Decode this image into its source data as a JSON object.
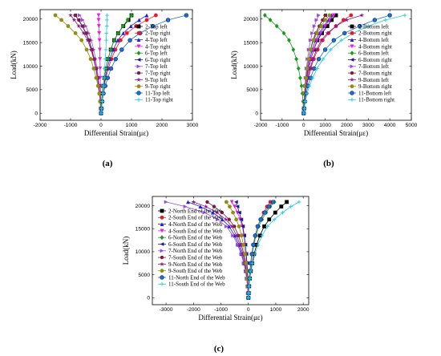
{
  "figure": {
    "captions": [
      "(a)",
      "(b)",
      "(c)"
    ]
  },
  "chart_data": [
    {
      "type": "line",
      "xlabel": "Differential Strain(με)",
      "ylabel": "Load(kN)",
      "xlim": [
        -2000,
        3000
      ],
      "ylim": [
        -1500,
        22000
      ],
      "xticks": [
        "-2000",
        "-1000",
        "0",
        "1000",
        "2000",
        "3000"
      ],
      "yticks": [
        "0",
        "5000",
        "10000",
        "15000",
        "20000"
      ],
      "legend_position": "right",
      "y": [
        0,
        1000,
        2500,
        4200,
        5800,
        7500,
        9500,
        11500,
        13500,
        15500,
        17000,
        18500,
        19800,
        20800
      ],
      "series": [
        {
          "name": "2-Top left",
          "color": "#000000",
          "marker": "square",
          "x": [
            0,
            10,
            20,
            40,
            70,
            110,
            160,
            230,
            320,
            430,
            560,
            730,
            900,
            1000
          ]
        },
        {
          "name": "2-Top right",
          "color": "#e8182a",
          "marker": "circle",
          "x": [
            0,
            15,
            30,
            60,
            100,
            160,
            240,
            340,
            470,
            640,
            850,
            1150,
            1500,
            1800
          ]
        },
        {
          "name": "4-Top left",
          "color": "#1d1ddb",
          "marker": "triangle",
          "x": [
            0,
            10,
            25,
            50,
            85,
            140,
            200,
            290,
            400,
            550,
            730,
            980,
            1250,
            1500
          ]
        },
        {
          "name": "4-Top right",
          "color": "#e21ee2",
          "marker": "triangle-down",
          "x": [
            0,
            -5,
            -10,
            -15,
            -20,
            -25,
            -30,
            -35,
            -40,
            -50,
            -60,
            -70,
            -80,
            -80
          ]
        },
        {
          "name": "6-Top left",
          "color": "#1a9a1a",
          "marker": "diamond",
          "x": [
            0,
            10,
            20,
            40,
            70,
            110,
            160,
            230,
            320,
            430,
            560,
            720,
            870,
            1000
          ]
        },
        {
          "name": "6-Top right",
          "color": "#1c1c8e",
          "marker": "triangle-left",
          "x": [
            0,
            -10,
            -25,
            -50,
            -80,
            -120,
            -170,
            -230,
            -310,
            -400,
            -500,
            -620,
            -740,
            -850
          ]
        },
        {
          "name": "7-Top left",
          "color": "#9a4cd9",
          "marker": "triangle-right",
          "x": [
            0,
            -10,
            -20,
            -35,
            -60,
            -90,
            -130,
            -180,
            -240,
            -320,
            -400,
            -500,
            -600,
            -700
          ]
        },
        {
          "name": "7-Top right",
          "color": "#7a1e3a",
          "marker": "hexagon",
          "x": [
            0,
            -10,
            -20,
            -40,
            -70,
            -110,
            -160,
            -220,
            -300,
            -390,
            -490,
            -610,
            -730,
            -850
          ]
        },
        {
          "name": "9-Top left",
          "color": "#8a1a8a",
          "marker": "star",
          "x": [
            0,
            -10,
            -25,
            -45,
            -75,
            -115,
            -170,
            -240,
            -330,
            -440,
            -570,
            -730,
            -880,
            -1000
          ]
        },
        {
          "name": "9-Top right",
          "color": "#8f8f14",
          "marker": "circle",
          "x": [
            0,
            -15,
            -30,
            -60,
            -100,
            -160,
            -240,
            -340,
            -470,
            -640,
            -840,
            -1080,
            -1300,
            -1500
          ]
        },
        {
          "name": "11-Top left",
          "color": "#1f6fd1",
          "marker": "circle-open",
          "x": [
            0,
            20,
            40,
            80,
            140,
            220,
            330,
            480,
            680,
            950,
            1280,
            1700,
            2200,
            2800
          ]
        },
        {
          "name": "11-Top right",
          "color": "#28c9d9",
          "marker": "cross",
          "x": [
            0,
            20,
            40,
            60,
            80,
            100,
            120,
            140,
            160,
            170,
            180,
            190,
            195,
            200
          ]
        }
      ]
    },
    {
      "type": "line",
      "xlabel": "Differential Strain(με)",
      "ylabel": "Load(kN)",
      "xlim": [
        -2000,
        5000
      ],
      "ylim": [
        -1500,
        22000
      ],
      "xticks": [
        "-2000",
        "-1000",
        "0",
        "1000",
        "2000",
        "3000",
        "4000",
        "5000"
      ],
      "yticks": [
        "0",
        "5000",
        "10000",
        "15000",
        "20000"
      ],
      "legend_position": "right",
      "y": [
        0,
        1000,
        2500,
        4200,
        5800,
        7500,
        9500,
        11500,
        13500,
        15500,
        17000,
        18500,
        19800,
        20800
      ],
      "series": [
        {
          "name": "2-Bottom left",
          "color": "#000000",
          "marker": "square",
          "x": [
            0,
            15,
            30,
            60,
            100,
            160,
            240,
            340,
            470,
            640,
            850,
            1100,
            1300,
            1500
          ]
        },
        {
          "name": "2-Bottom right",
          "color": "#e8182a",
          "marker": "circle",
          "x": [
            0,
            20,
            40,
            80,
            140,
            220,
            330,
            470,
            650,
            880,
            1160,
            1500,
            1850,
            2200
          ]
        },
        {
          "name": "4-Bottom left",
          "color": "#1d1ddb",
          "marker": "triangle",
          "x": [
            0,
            10,
            25,
            50,
            85,
            140,
            200,
            290,
            400,
            550,
            730,
            930,
            1150,
            1300
          ]
        },
        {
          "name": "4-Bottom right",
          "color": "#e21ee2",
          "marker": "triangle-down",
          "x": [
            0,
            15,
            30,
            60,
            100,
            160,
            240,
            340,
            460,
            620,
            800,
            1000,
            1200,
            1400
          ]
        },
        {
          "name": "6-Bottom left",
          "color": "#1a9a1a",
          "marker": "diamond",
          "x": [
            0,
            -15,
            -30,
            -60,
            -100,
            -160,
            -240,
            -340,
            -480,
            -680,
            -920,
            -1250,
            -1550,
            -1800
          ]
        },
        {
          "name": "6-Bottom right",
          "color": "#1c1c8e",
          "marker": "triangle-left",
          "x": [
            0,
            10,
            20,
            40,
            70,
            110,
            160,
            230,
            320,
            430,
            560,
            720,
            870,
            1000
          ]
        },
        {
          "name": "7-Bottom left",
          "color": "#9a4cd9",
          "marker": "triangle-right",
          "x": [
            0,
            10,
            20,
            40,
            60,
            90,
            130,
            180,
            240,
            320,
            400,
            500,
            600,
            700
          ]
        },
        {
          "name": "7-Bottom right",
          "color": "#7a1e3a",
          "marker": "hexagon",
          "x": [
            0,
            10,
            25,
            45,
            75,
            115,
            170,
            240,
            330,
            440,
            570,
            730,
            880,
            1000
          ]
        },
        {
          "name": "9-Bottom left",
          "color": "#8a1a8a",
          "marker": "star",
          "x": [
            0,
            20,
            40,
            80,
            130,
            200,
            300,
            430,
            600,
            820,
            1100,
            1500,
            2000,
            2700
          ]
        },
        {
          "name": "9-Bottom right",
          "color": "#8f8f14",
          "marker": "circle",
          "x": [
            0,
            10,
            20,
            40,
            70,
            110,
            160,
            230,
            330,
            460,
            620,
            820,
            1000,
            1200
          ]
        },
        {
          "name": "11-Bottom left",
          "color": "#1f6fd1",
          "marker": "circle-open",
          "x": [
            0,
            30,
            60,
            120,
            200,
            320,
            480,
            700,
            1000,
            1400,
            1900,
            2600,
            3300,
            4000
          ]
        },
        {
          "name": "11-Bottom right",
          "color": "#28c9d9",
          "marker": "cross",
          "x": [
            0,
            40,
            80,
            160,
            270,
            420,
            620,
            900,
            1250,
            1750,
            2300,
            3000,
            3800,
            4700
          ]
        }
      ]
    },
    {
      "type": "line",
      "xlabel": "Differential Strain(με)",
      "ylabel": "Load(kN)",
      "xlim": [
        -3500,
        2200
      ],
      "ylim": [
        -1500,
        22000
      ],
      "xticks": [
        "-3000",
        "-2000",
        "-1000",
        "0",
        "1000",
        "2000"
      ],
      "yticks": [
        "0",
        "5000",
        "10000",
        "15000",
        "20000"
      ],
      "legend_position": "left",
      "y": [
        0,
        1000,
        2500,
        4200,
        5800,
        7500,
        9500,
        11500,
        13500,
        15500,
        17000,
        18500,
        19800,
        20800
      ],
      "series": [
        {
          "name": "2-North End of the Web",
          "color": "#000000",
          "marker": "square",
          "x": [
            0,
            15,
            30,
            55,
            90,
            140,
            210,
            300,
            420,
            580,
            760,
            980,
            1200,
            1400
          ]
        },
        {
          "name": "2-South End of the Web",
          "color": "#e8182a",
          "marker": "circle",
          "x": [
            0,
            10,
            20,
            35,
            55,
            85,
            125,
            180,
            250,
            340,
            440,
            560,
            680,
            800
          ]
        },
        {
          "name": "4-North End of the Web",
          "color": "#1d1ddb",
          "marker": "triangle",
          "x": [
            0,
            -15,
            -30,
            -60,
            -100,
            -160,
            -240,
            -350,
            -500,
            -700,
            -950,
            -1300,
            -1750,
            -2200
          ]
        },
        {
          "name": "4-South End of the Web",
          "color": "#e21ee2",
          "marker": "triangle-down",
          "x": [
            0,
            -5,
            -10,
            -20,
            -35,
            -55,
            -80,
            -115,
            -160,
            -220,
            -300,
            -400,
            -500,
            -600
          ]
        },
        {
          "name": "6-North End of the Web",
          "color": "#1a9a1a",
          "marker": "diamond",
          "x": [
            0,
            10,
            20,
            35,
            60,
            95,
            140,
            200,
            280,
            380,
            500,
            650,
            800,
            950
          ]
        },
        {
          "name": "6-South End of the Web",
          "color": "#1c1c8e",
          "marker": "triangle-left",
          "x": [
            0,
            -5,
            -10,
            -20,
            -30,
            -50,
            -75,
            -110,
            -150,
            -200,
            -260,
            -330,
            -400,
            -450
          ]
        },
        {
          "name": "7-North End of the Web",
          "color": "#9a4cd9",
          "marker": "triangle-right",
          "x": [
            0,
            -15,
            -30,
            -60,
            -100,
            -170,
            -260,
            -390,
            -560,
            -800,
            -1120,
            -1600,
            -2300,
            -3000
          ]
        },
        {
          "name": "7-South End of the Web",
          "color": "#7a1e3a",
          "marker": "hexagon",
          "x": [
            0,
            -10,
            -20,
            -40,
            -70,
            -110,
            -170,
            -250,
            -360,
            -510,
            -700,
            -960,
            -1250,
            -1500
          ]
        },
        {
          "name": "9-North End of the Web",
          "color": "#8a1a8a",
          "marker": "star",
          "x": [
            0,
            -10,
            -25,
            -50,
            -80,
            -130,
            -200,
            -300,
            -430,
            -600,
            -820,
            -1150,
            -1550,
            -2000
          ]
        },
        {
          "name": "9-South End of the Web",
          "color": "#8f8f14",
          "marker": "circle",
          "x": [
            0,
            -10,
            -20,
            -35,
            -55,
            -85,
            -125,
            -180,
            -250,
            -340,
            -440,
            -560,
            -680,
            -800
          ]
        },
        {
          "name": "11-North End of the Web",
          "color": "#1f6fd1",
          "marker": "circle-open",
          "x": [
            0,
            10,
            20,
            40,
            60,
            90,
            130,
            180,
            250,
            340,
            450,
            600,
            750,
            900
          ]
        },
        {
          "name": "11-South End of the Web",
          "color": "#28c9d9",
          "marker": "cross",
          "x": [
            0,
            15,
            30,
            60,
            100,
            160,
            240,
            350,
            500,
            700,
            950,
            1250,
            1550,
            1850
          ]
        }
      ]
    }
  ]
}
